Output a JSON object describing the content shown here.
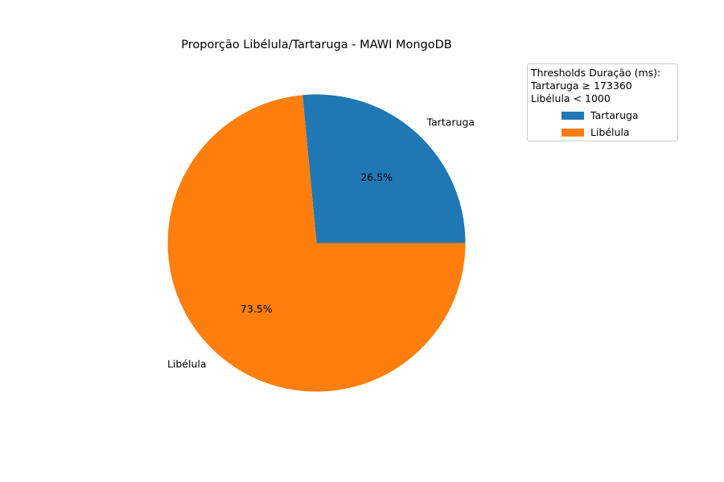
{
  "chart_data": {
    "type": "pie",
    "title": "Proporção Libélula/Tartaruga - MAWI MongoDB",
    "slices": [
      {
        "label": "Tartaruga",
        "value": 26.5,
        "pct_label": "26.5%",
        "color": "#1f77b4"
      },
      {
        "label": "Libélula",
        "value": 73.5,
        "pct_label": "73.5%",
        "color": "#ff7f0e"
      }
    ],
    "legend": {
      "title_lines": [
        "Thresholds Duração (ms):",
        "Tartaruga ≥ 173360",
        "Libélula < 1000"
      ],
      "entries": [
        "Tartaruga",
        "Libélula"
      ],
      "placement": "upper-right outside"
    }
  }
}
